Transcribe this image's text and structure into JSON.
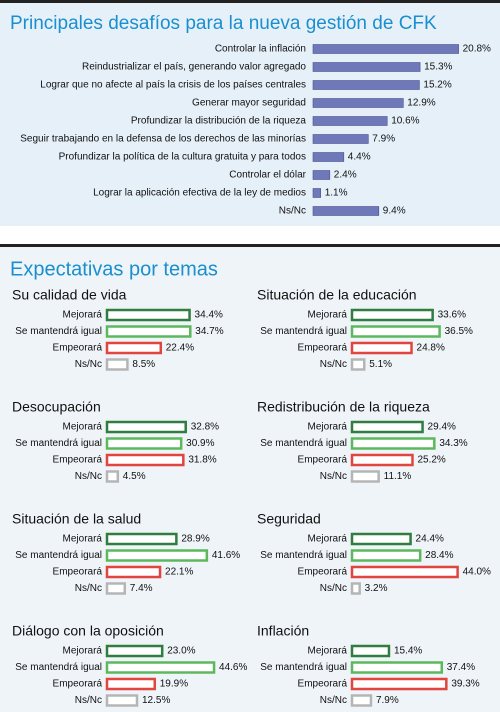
{
  "chart_data": [
    {
      "type": "hbar",
      "title": "Principales desafíos para la nueva gestión de CFK",
      "color": "#6f78b8",
      "categories": [
        "Controlar la inflación",
        "Reindustrializar el país, generando valor agregado",
        "Lograr que no afecte al país la crisis de los países centrales",
        "Generar mayor seguridad",
        "Profundizar la distribución de la riqueza",
        "Seguir trabajando en la defensa de los derechos de las minorías",
        "Profundizar la política de la cultura gratuita y para todos",
        "Controlar el dólar",
        "Lograr la aplicación efectiva de la ley de medios",
        "Ns/Nc"
      ],
      "values": [
        20.8,
        15.3,
        15.2,
        12.9,
        10.6,
        7.9,
        4.4,
        2.4,
        1.1,
        9.4
      ],
      "value_labels": [
        "20.8%",
        "15.3%",
        "15.2%",
        "12.9%",
        "10.6%",
        "7.9%",
        "4.4%",
        "2.4%",
        "1.1%",
        "9.4%"
      ]
    },
    {
      "type": "small-hbar",
      "title": "Su calidad de vida",
      "categories": [
        "Mejorará",
        "Se mantendrá igual",
        "Empeorará",
        "Ns/Nc"
      ],
      "colors": [
        "#2f7d3f",
        "#5cb85c",
        "#e0463f",
        "#b5b5b5"
      ],
      "values": [
        34.4,
        34.7,
        22.4,
        8.5
      ],
      "value_labels": [
        "34.4%",
        "34.7%",
        "22.4%",
        "8.5%"
      ]
    },
    {
      "type": "small-hbar",
      "title": "Situación de la educación",
      "categories": [
        "Mejorará",
        "Se mantendrá igual",
        "Empeorará",
        "Ns/Nc"
      ],
      "colors": [
        "#2f7d3f",
        "#5cb85c",
        "#e0463f",
        "#b5b5b5"
      ],
      "values": [
        33.6,
        36.5,
        24.8,
        5.1
      ],
      "value_labels": [
        "33.6%",
        "36.5%",
        "24.8%",
        "5.1%"
      ]
    },
    {
      "type": "small-hbar",
      "title": "Desocupación",
      "categories": [
        "Mejorará",
        "Se mantendrá igual",
        "Empeorará",
        "Ns/Nc"
      ],
      "colors": [
        "#2f7d3f",
        "#5cb85c",
        "#e0463f",
        "#b5b5b5"
      ],
      "values": [
        32.8,
        30.9,
        31.8,
        4.5
      ],
      "value_labels": [
        "32.8%",
        "30.9%",
        "31.8%",
        "4.5%"
      ]
    },
    {
      "type": "small-hbar",
      "title": "Redistribución de la riqueza",
      "categories": [
        "Mejorará",
        "Se mantendrá igual",
        "Empeorará",
        "Ns/Nc"
      ],
      "colors": [
        "#2f7d3f",
        "#5cb85c",
        "#e0463f",
        "#b5b5b5"
      ],
      "values": [
        29.4,
        34.3,
        25.2,
        11.1
      ],
      "value_labels": [
        "29.4%",
        "34.3%",
        "25.2%",
        "11.1%"
      ]
    },
    {
      "type": "small-hbar",
      "title": "Situación de la salud",
      "categories": [
        "Mejorará",
        "Se mantendrá igual",
        "Empeorará",
        "Ns/Nc"
      ],
      "colors": [
        "#2f7d3f",
        "#5cb85c",
        "#e0463f",
        "#b5b5b5"
      ],
      "values": [
        28.9,
        41.6,
        22.1,
        7.4
      ],
      "value_labels": [
        "28.9%",
        "41.6%",
        "22.1%",
        "7.4%"
      ]
    },
    {
      "type": "small-hbar",
      "title": "Seguridad",
      "categories": [
        "Mejorará",
        "Se mantendrá igual",
        "Empeorará",
        "Ns/Nc"
      ],
      "colors": [
        "#2f7d3f",
        "#5cb85c",
        "#e0463f",
        "#b5b5b5"
      ],
      "values": [
        24.4,
        28.4,
        44.0,
        3.2
      ],
      "value_labels": [
        "24.4%",
        "28.4%",
        "44.0%",
        "3.2%"
      ]
    },
    {
      "type": "small-hbar",
      "title": "Diálogo con la oposición",
      "categories": [
        "Mejorará",
        "Se mantendrá igual",
        "Empeorará",
        "Ns/Nc"
      ],
      "colors": [
        "#2f7d3f",
        "#5cb85c",
        "#e0463f",
        "#b5b5b5"
      ],
      "values": [
        23.0,
        44.6,
        19.9,
        12.5
      ],
      "value_labels": [
        "23.0%",
        "44.6%",
        "19.9%",
        "12.5%"
      ]
    },
    {
      "type": "small-hbar",
      "title": "Inflación",
      "categories": [
        "Mejorará",
        "Se mantendrá igual",
        "Empeorará",
        "Ns/Nc"
      ],
      "colors": [
        "#2f7d3f",
        "#5cb85c",
        "#e0463f",
        "#b5b5b5"
      ],
      "values": [
        15.4,
        37.4,
        39.3,
        7.9
      ],
      "value_labels": [
        "15.4%",
        "37.4%",
        "39.3%",
        "7.9%"
      ]
    }
  ],
  "header": {
    "title": "Expectativas por temas"
  }
}
